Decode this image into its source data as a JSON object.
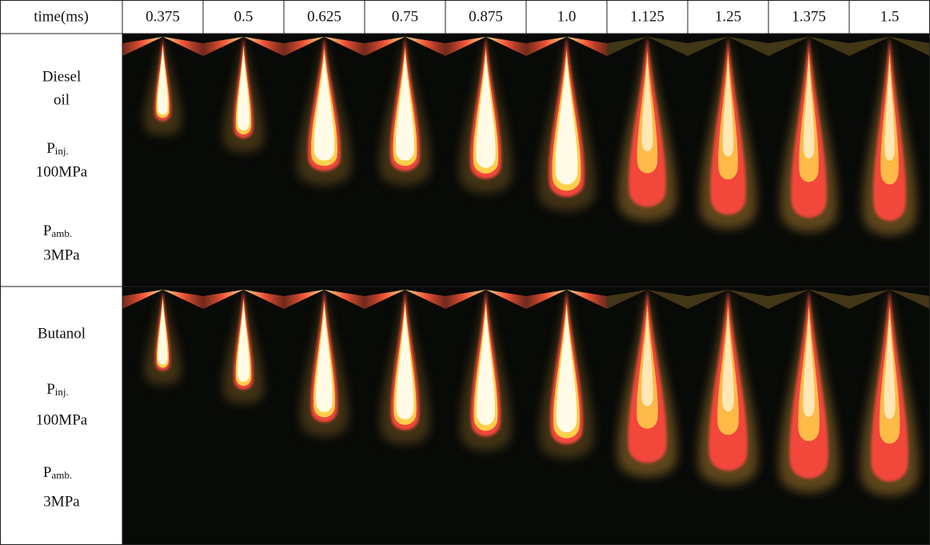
{
  "table": {
    "header": [
      "time(ms)",
      "0.375",
      "0.5",
      "0.625",
      "0.75",
      "0.875",
      "1.0",
      "1.125",
      "1.25",
      "1.375",
      "1.5"
    ],
    "rows": [
      {
        "fuel": [
          "Diesel",
          "oil"
        ],
        "injection": {
          "symbol": "P",
          "subscript": "inj.",
          "value": "100MPa"
        },
        "ambient": {
          "symbol": "P",
          "subscript": "amb.",
          "value": "3MPa"
        }
      },
      {
        "fuel": [
          "Butanol"
        ],
        "injection": {
          "symbol": "P",
          "subscript": "inj.",
          "value": "100MPa"
        },
        "ambient": {
          "symbol": "P",
          "subscript": "amb.",
          "value": "3MPa"
        }
      }
    ]
  }
}
